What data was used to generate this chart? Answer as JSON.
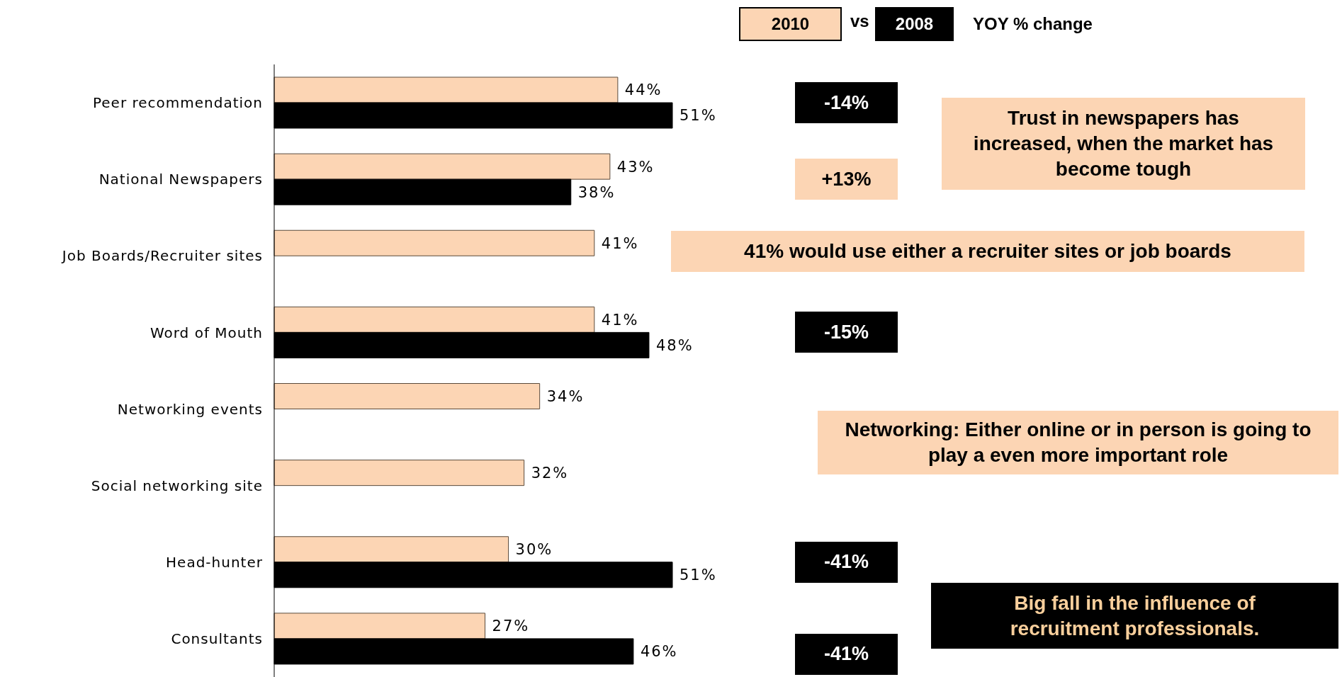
{
  "chart_data": {
    "type": "bar",
    "orientation": "horizontal",
    "categories": [
      "Peer recommendation",
      "National Newspapers",
      "Job Boards/Recruiter sites",
      "Word of Mouth",
      "Networking events",
      "Social networking site",
      "Head-hunter",
      "Consultants"
    ],
    "series": [
      {
        "name": "2010",
        "color": "#fcd5b4",
        "values": [
          44,
          43,
          41,
          41,
          34,
          32,
          30,
          27
        ],
        "value_labels": [
          "44%",
          "43%",
          "41%",
          "41%",
          "34%",
          "32%",
          "30%",
          "27%"
        ]
      },
      {
        "name": "2008",
        "color": "#000000",
        "values": [
          51,
          38,
          null,
          48,
          null,
          null,
          51,
          46
        ],
        "value_labels": [
          "51%",
          "38%",
          null,
          "48%",
          null,
          null,
          "51%",
          "46%"
        ]
      }
    ],
    "legend": "top",
    "annotations": [
      "vs",
      "YOY % change",
      "-14%",
      "+13%",
      "-15%",
      "-41%",
      "-41%",
      "Trust in newspapers has increased, when the market has become tough",
      "41% would use either a recruiter sites or job boards",
      "Networking: Either online or in person is going to play a even more important role",
      "Big fall in the influence of recruitment professionals."
    ]
  }
}
